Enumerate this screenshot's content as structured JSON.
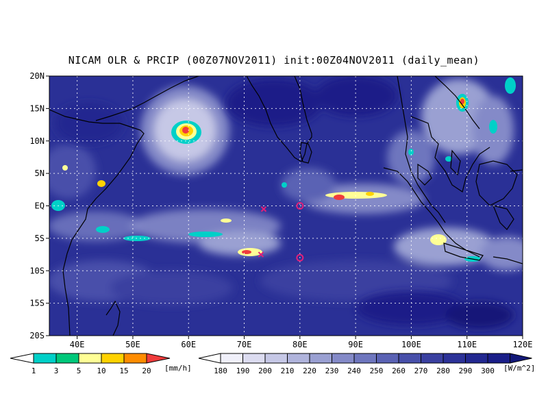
{
  "title": "NICAM OLR & PRCIP (00Z07NOV2011) init:00Z04NOV2011 (daily_mean)",
  "map": {
    "lon_range": [
      35,
      120
    ],
    "lat_range": [
      -20,
      20
    ],
    "lat_ticks": [
      {
        "value": 20,
        "label": "20N"
      },
      {
        "value": 15,
        "label": "15N"
      },
      {
        "value": 10,
        "label": "10N"
      },
      {
        "value": 5,
        "label": "5N"
      },
      {
        "value": 0,
        "label": "EQ"
      },
      {
        "value": -5,
        "label": "5S"
      },
      {
        "value": -10,
        "label": "10S"
      },
      {
        "value": -15,
        "label": "15S"
      },
      {
        "value": -20,
        "label": "20S"
      }
    ],
    "lon_ticks": [
      {
        "value": 40,
        "label": "40E"
      },
      {
        "value": 50,
        "label": "50E"
      },
      {
        "value": 60,
        "label": "60E"
      },
      {
        "value": 70,
        "label": "70E"
      },
      {
        "value": 80,
        "label": "80E"
      },
      {
        "value": 90,
        "label": "90E"
      },
      {
        "value": 100,
        "label": "100E"
      },
      {
        "value": 110,
        "label": "110E"
      },
      {
        "value": 120,
        "label": "120E"
      }
    ],
    "markers": [
      {
        "type": "circle",
        "lon": 80,
        "lat": 0,
        "color": "#e0207a"
      },
      {
        "type": "circle",
        "lon": 80,
        "lat": -8,
        "color": "#e0207a"
      },
      {
        "type": "cross",
        "lon": 73.5,
        "lat": -0.5,
        "color": "#e0207a"
      },
      {
        "type": "cross",
        "lon": 73,
        "lat": -7.5,
        "color": "#e0207a"
      }
    ]
  },
  "precip_colorbar": {
    "unit": "[mm/h]",
    "labels": [
      "1",
      "3",
      "5",
      "10",
      "15",
      "20"
    ],
    "colors": [
      "#00d0c8",
      "#00c87a",
      "#ffff96",
      "#ffd200",
      "#ff8c00",
      "#f03c3c"
    ]
  },
  "olr_colorbar": {
    "unit": "[W/m^2]",
    "labels": [
      "180",
      "190",
      "200",
      "210",
      "220",
      "230",
      "240",
      "250",
      "260",
      "270",
      "280",
      "290",
      "300"
    ],
    "colors": [
      "#f0f0fa",
      "#dcdcf0",
      "#c6c8e6",
      "#b0b4dc",
      "#9aa0d2",
      "#848ac8",
      "#6e76be",
      "#5a62b4",
      "#4850aa",
      "#3a40a0",
      "#2c3298",
      "#222890",
      "#1a1e88",
      "#121878"
    ]
  }
}
